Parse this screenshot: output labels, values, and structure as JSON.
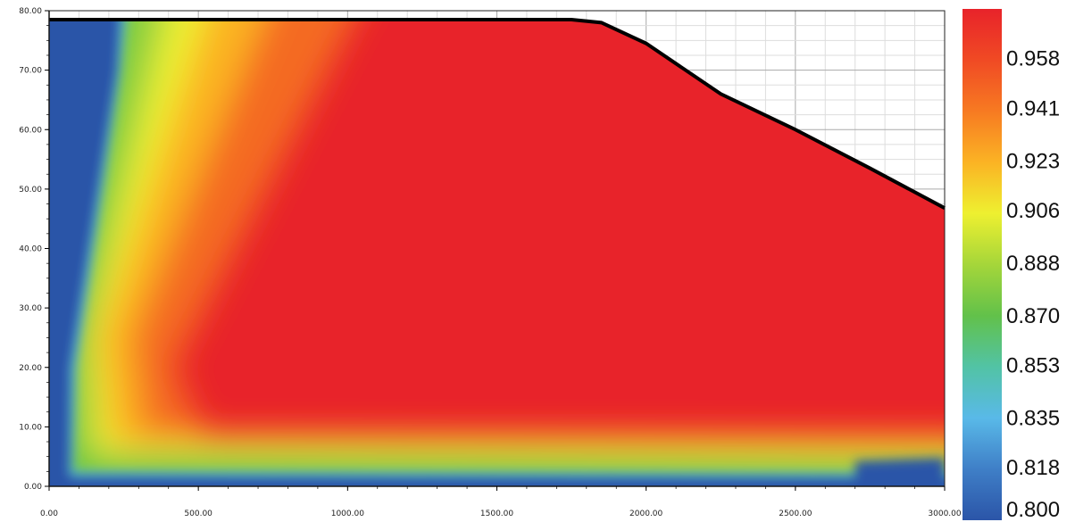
{
  "chart_data": {
    "type": "heatmap",
    "title": "",
    "xlabel": "",
    "ylabel": "",
    "xlim": [
      0,
      3000
    ],
    "ylim": [
      0,
      80
    ],
    "x_ticks": [
      "0.00",
      "500.00",
      "1000.00",
      "1500.00",
      "2000.00",
      "2500.00",
      "3000.00"
    ],
    "y_ticks": [
      "0.00",
      "10.00",
      "20.00",
      "30.00",
      "40.00",
      "50.00",
      "60.00",
      "70.00",
      "80.00"
    ],
    "grid": true,
    "domain_boundary": [
      {
        "x": 0,
        "y": 78.5
      },
      {
        "x": 1750,
        "y": 78.5
      },
      {
        "x": 1850,
        "y": 78
      },
      {
        "x": 2000,
        "y": 74.5
      },
      {
        "x": 2250,
        "y": 66
      },
      {
        "x": 2500,
        "y": 60
      },
      {
        "x": 2750,
        "y": 53.5
      },
      {
        "x": 3000,
        "y": 46.8
      }
    ],
    "field_description_points": [
      {
        "x": 50,
        "y": 40,
        "value": 0.8
      },
      {
        "x": 250,
        "y": 70,
        "value": 0.86
      },
      {
        "x": 500,
        "y": 70,
        "value": 0.91
      },
      {
        "x": 1000,
        "y": 60,
        "value": 0.95
      },
      {
        "x": 1500,
        "y": 35,
        "value": 0.965
      },
      {
        "x": 2000,
        "y": 35,
        "value": 0.965
      },
      {
        "x": 1500,
        "y": 5,
        "value": 0.9
      },
      {
        "x": 1500,
        "y": 1.5,
        "value": 0.82
      }
    ],
    "colorbar": {
      "min": 0.8,
      "max": 0.975,
      "tick_labels": [
        "0.958",
        "0.941",
        "0.923",
        "0.906",
        "0.888",
        "0.870",
        "0.853",
        "0.835",
        "0.818",
        "0.800"
      ],
      "tick_values": [
        0.958,
        0.941,
        0.923,
        0.906,
        0.888,
        0.87,
        0.853,
        0.835,
        0.818,
        0.8
      ],
      "colors": [
        "#e8232a",
        "#f04a24",
        "#f77a22",
        "#fbb324",
        "#eef030",
        "#a5d63a",
        "#62c14a",
        "#52c3a5",
        "#59b9e8",
        "#3f7fc7",
        "#2b55a8"
      ]
    }
  }
}
